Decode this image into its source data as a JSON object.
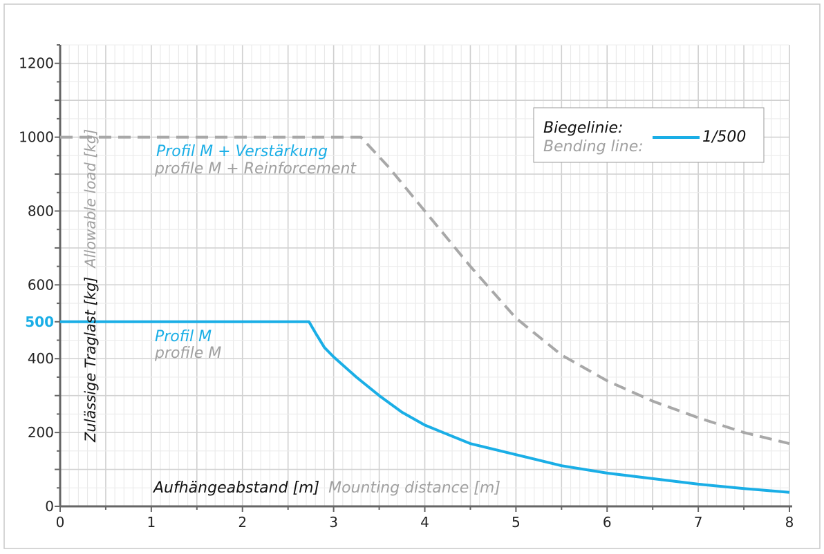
{
  "chart_data": {
    "type": "line",
    "title": "",
    "xlabel": "Aufhängeabstand [m]",
    "xlabel_en": "Mounting distance [m]",
    "ylabel": "Zulässige Traglast [kg]",
    "ylabel_en": "Allowable load [kg]",
    "xlim": [
      0,
      8
    ],
    "ylim": [
      0,
      1250
    ],
    "x_ticks": [
      "0",
      "1",
      "2",
      "3",
      "4",
      "5",
      "6",
      "7",
      "8"
    ],
    "y_ticks": [
      "0",
      "200",
      "400",
      "600",
      "800",
      "1000",
      "1200"
    ],
    "y_highlight_tick": "500",
    "grid": true,
    "series": [
      {
        "name": "Profil M + Verstärkung",
        "name_en": "profile M + Reinforcement",
        "color": "#a8a8a8",
        "style": "dashed",
        "points": [
          [
            0,
            1000
          ],
          [
            0.5,
            1000
          ],
          [
            1,
            1000
          ],
          [
            1.5,
            1000
          ],
          [
            2,
            1000
          ],
          [
            2.5,
            1000
          ],
          [
            3,
            1000
          ],
          [
            3.3,
            1000
          ],
          [
            3.6,
            920
          ],
          [
            4,
            800
          ],
          [
            4.5,
            650
          ],
          [
            5,
            510
          ],
          [
            5.5,
            410
          ],
          [
            6,
            340
          ],
          [
            6.5,
            285
          ],
          [
            7,
            240
          ],
          [
            7.5,
            200
          ],
          [
            8,
            170
          ]
        ]
      },
      {
        "name": "Profil M",
        "name_en": "profile M",
        "color": "#1aaee6",
        "style": "solid",
        "points": [
          [
            0,
            500
          ],
          [
            0.5,
            500
          ],
          [
            1,
            500
          ],
          [
            1.5,
            500
          ],
          [
            2,
            500
          ],
          [
            2.5,
            500
          ],
          [
            2.73,
            500
          ],
          [
            2.8,
            470
          ],
          [
            2.9,
            430
          ],
          [
            3,
            405
          ],
          [
            3.25,
            350
          ],
          [
            3.5,
            300
          ],
          [
            3.75,
            255
          ],
          [
            4,
            220
          ],
          [
            4.5,
            170
          ],
          [
            5,
            140
          ],
          [
            5.5,
            110
          ],
          [
            6,
            90
          ],
          [
            6.5,
            75
          ],
          [
            7,
            60
          ],
          [
            7.5,
            48
          ],
          [
            8,
            38
          ]
        ]
      }
    ],
    "legend": {
      "title": "Biegelinie:",
      "title_en": "Bending line:",
      "entry": "1/500",
      "position": "top-right"
    }
  }
}
